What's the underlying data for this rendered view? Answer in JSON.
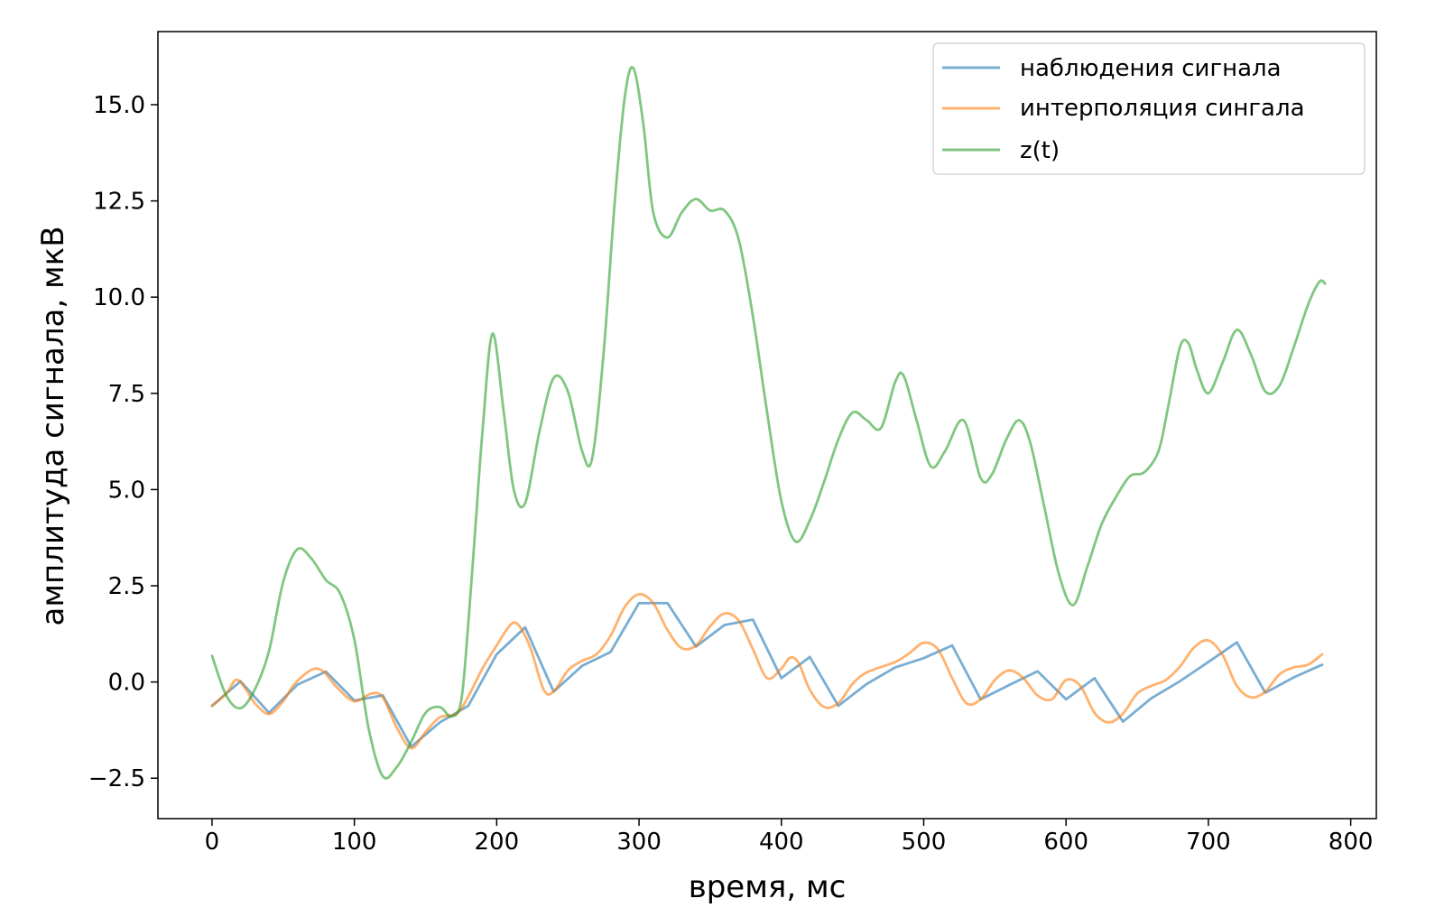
{
  "chart_data": {
    "type": "line",
    "xlabel": "время, мс",
    "ylabel": "амплитуда сигнала, мкВ",
    "xlim": [
      -38,
      818
    ],
    "ylim": [
      -3.55,
      16.9
    ],
    "xticks": [
      0,
      100,
      200,
      300,
      400,
      500,
      600,
      700,
      800
    ],
    "yticks": [
      -2.5,
      0.0,
      2.5,
      5.0,
      7.5,
      10.0,
      12.5,
      15.0
    ],
    "xtick_labels": [
      "0",
      "100",
      "200",
      "300",
      "400",
      "500",
      "600",
      "700",
      "800"
    ],
    "ytick_labels": [
      "−2.5",
      "0.0",
      "2.5",
      "5.0",
      "7.5",
      "10.0",
      "12.5",
      "15.0"
    ],
    "grid": false,
    "legend_position": "top-right",
    "series": [
      {
        "name": "наблюдения сигнала",
        "color": "#1f77b4",
        "smooth": false,
        "points": [
          [
            0,
            -0.62
          ],
          [
            20,
            0.02
          ],
          [
            40,
            -0.8
          ],
          [
            60,
            -0.07
          ],
          [
            80,
            0.27
          ],
          [
            100,
            -0.48
          ],
          [
            120,
            -0.35
          ],
          [
            140,
            -1.68
          ],
          [
            160,
            -1.05
          ],
          [
            180,
            -0.62
          ],
          [
            200,
            0.72
          ],
          [
            220,
            1.42
          ],
          [
            240,
            -0.25
          ],
          [
            260,
            0.42
          ],
          [
            280,
            0.78
          ],
          [
            300,
            2.05
          ],
          [
            320,
            2.05
          ],
          [
            340,
            0.92
          ],
          [
            360,
            1.48
          ],
          [
            380,
            1.62
          ],
          [
            400,
            0.1
          ],
          [
            420,
            0.65
          ],
          [
            440,
            -0.62
          ],
          [
            460,
            -0.05
          ],
          [
            480,
            0.38
          ],
          [
            500,
            0.62
          ],
          [
            520,
            0.95
          ],
          [
            540,
            -0.45
          ],
          [
            560,
            -0.08
          ],
          [
            580,
            0.28
          ],
          [
            600,
            -0.45
          ],
          [
            620,
            0.1
          ],
          [
            640,
            -1.03
          ],
          [
            660,
            -0.42
          ],
          [
            680,
            0.02
          ],
          [
            700,
            0.52
          ],
          [
            720,
            1.03
          ],
          [
            740,
            -0.28
          ],
          [
            760,
            0.12
          ],
          [
            780,
            0.45
          ]
        ]
      },
      {
        "name": "интерполяция сингала",
        "color": "#ff7f0e",
        "smooth": true,
        "points": [
          [
            0,
            -0.62
          ],
          [
            10,
            -0.3
          ],
          [
            17,
            0.06
          ],
          [
            24,
            -0.2
          ],
          [
            30,
            -0.55
          ],
          [
            40,
            -0.83
          ],
          [
            50,
            -0.5
          ],
          [
            58,
            -0.05
          ],
          [
            70,
            0.32
          ],
          [
            78,
            0.28
          ],
          [
            88,
            -0.15
          ],
          [
            100,
            -0.5
          ],
          [
            112,
            -0.3
          ],
          [
            120,
            -0.4
          ],
          [
            130,
            -1.2
          ],
          [
            140,
            -1.72
          ],
          [
            150,
            -1.3
          ],
          [
            160,
            -0.92
          ],
          [
            172,
            -0.82
          ],
          [
            180,
            -0.38
          ],
          [
            190,
            0.35
          ],
          [
            200,
            0.95
          ],
          [
            210,
            1.5
          ],
          [
            216,
            1.45
          ],
          [
            224,
            0.85
          ],
          [
            233,
            -0.2
          ],
          [
            240,
            -0.25
          ],
          [
            250,
            0.3
          ],
          [
            260,
            0.55
          ],
          [
            270,
            0.72
          ],
          [
            280,
            1.2
          ],
          [
            290,
            1.95
          ],
          [
            300,
            2.28
          ],
          [
            310,
            2.05
          ],
          [
            320,
            1.35
          ],
          [
            330,
            0.88
          ],
          [
            340,
            0.95
          ],
          [
            350,
            1.45
          ],
          [
            360,
            1.78
          ],
          [
            370,
            1.6
          ],
          [
            380,
            0.85
          ],
          [
            390,
            0.1
          ],
          [
            400,
            0.35
          ],
          [
            406,
            0.63
          ],
          [
            412,
            0.5
          ],
          [
            420,
            -0.2
          ],
          [
            430,
            -0.65
          ],
          [
            440,
            -0.55
          ],
          [
            450,
            -0.05
          ],
          [
            460,
            0.25
          ],
          [
            480,
            0.52
          ],
          [
            490,
            0.75
          ],
          [
            500,
            1.02
          ],
          [
            510,
            0.85
          ],
          [
            520,
            0.1
          ],
          [
            530,
            -0.55
          ],
          [
            540,
            -0.45
          ],
          [
            550,
            0.05
          ],
          [
            560,
            0.3
          ],
          [
            570,
            0.1
          ],
          [
            580,
            -0.35
          ],
          [
            590,
            -0.45
          ],
          [
            600,
            0.05
          ],
          [
            610,
            -0.1
          ],
          [
            620,
            -0.8
          ],
          [
            630,
            -1.05
          ],
          [
            640,
            -0.82
          ],
          [
            650,
            -0.3
          ],
          [
            660,
            -0.1
          ],
          [
            670,
            0.05
          ],
          [
            680,
            0.4
          ],
          [
            690,
            0.9
          ],
          [
            700,
            1.08
          ],
          [
            710,
            0.7
          ],
          [
            720,
            -0.1
          ],
          [
            730,
            -0.4
          ],
          [
            740,
            -0.25
          ],
          [
            750,
            0.2
          ],
          [
            760,
            0.38
          ],
          [
            770,
            0.45
          ],
          [
            780,
            0.72
          ]
        ]
      },
      {
        "name": "z(t)",
        "color": "#2ca02c",
        "smooth": true,
        "points": [
          [
            0,
            0.68
          ],
          [
            10,
            -0.35
          ],
          [
            20,
            -0.68
          ],
          [
            30,
            -0.2
          ],
          [
            40,
            0.8
          ],
          [
            50,
            2.6
          ],
          [
            60,
            3.45
          ],
          [
            70,
            3.2
          ],
          [
            80,
            2.65
          ],
          [
            90,
            2.3
          ],
          [
            100,
            1.1
          ],
          [
            110,
            -1.2
          ],
          [
            120,
            -2.45
          ],
          [
            130,
            -2.2
          ],
          [
            140,
            -1.55
          ],
          [
            150,
            -0.8
          ],
          [
            160,
            -0.65
          ],
          [
            168,
            -0.9
          ],
          [
            175,
            -0.5
          ],
          [
            180,
            1.5
          ],
          [
            185,
            4.0
          ],
          [
            190,
            6.5
          ],
          [
            197,
            9.05
          ],
          [
            205,
            7.0
          ],
          [
            212,
            5.0
          ],
          [
            220,
            4.65
          ],
          [
            230,
            6.5
          ],
          [
            240,
            7.9
          ],
          [
            250,
            7.55
          ],
          [
            260,
            6.0
          ],
          [
            267,
            5.8
          ],
          [
            275,
            8.5
          ],
          [
            283,
            12.5
          ],
          [
            290,
            15.2
          ],
          [
            296,
            15.95
          ],
          [
            303,
            14.5
          ],
          [
            310,
            12.2
          ],
          [
            320,
            11.55
          ],
          [
            330,
            12.2
          ],
          [
            340,
            12.55
          ],
          [
            350,
            12.25
          ],
          [
            360,
            12.25
          ],
          [
            370,
            11.5
          ],
          [
            380,
            9.5
          ],
          [
            390,
            7.0
          ],
          [
            400,
            4.7
          ],
          [
            410,
            3.65
          ],
          [
            420,
            4.2
          ],
          [
            430,
            5.2
          ],
          [
            440,
            6.3
          ],
          [
            450,
            7.0
          ],
          [
            460,
            6.8
          ],
          [
            470,
            6.6
          ],
          [
            480,
            7.8
          ],
          [
            486,
            7.95
          ],
          [
            495,
            6.8
          ],
          [
            505,
            5.6
          ],
          [
            515,
            6.0
          ],
          [
            528,
            6.8
          ],
          [
            540,
            5.3
          ],
          [
            548,
            5.4
          ],
          [
            558,
            6.3
          ],
          [
            567,
            6.8
          ],
          [
            575,
            6.2
          ],
          [
            585,
            4.5
          ],
          [
            595,
            2.8
          ],
          [
            605,
            2.0
          ],
          [
            615,
            3.0
          ],
          [
            625,
            4.1
          ],
          [
            635,
            4.8
          ],
          [
            645,
            5.35
          ],
          [
            655,
            5.45
          ],
          [
            665,
            6.0
          ],
          [
            672,
            7.2
          ],
          [
            680,
            8.7
          ],
          [
            686,
            8.8
          ],
          [
            692,
            8.1
          ],
          [
            700,
            7.5
          ],
          [
            710,
            8.3
          ],
          [
            720,
            9.15
          ],
          [
            730,
            8.5
          ],
          [
            740,
            7.55
          ],
          [
            750,
            7.7
          ],
          [
            760,
            8.7
          ],
          [
            770,
            9.8
          ],
          [
            778,
            10.4
          ],
          [
            782,
            10.35
          ]
        ]
      }
    ]
  }
}
